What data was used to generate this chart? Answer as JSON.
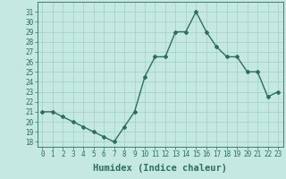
{
  "x": [
    0,
    1,
    2,
    3,
    4,
    5,
    6,
    7,
    8,
    9,
    10,
    11,
    12,
    13,
    14,
    15,
    16,
    17,
    18,
    19,
    20,
    21,
    22,
    23
  ],
  "y": [
    21.0,
    21.0,
    20.5,
    20.0,
    19.5,
    19.0,
    18.5,
    18.0,
    19.5,
    21.0,
    24.5,
    26.5,
    26.5,
    29.0,
    29.0,
    31.0,
    29.0,
    27.5,
    26.5,
    26.5,
    25.0,
    25.0,
    22.5,
    23.0
  ],
  "line_color": "#2d6e63",
  "marker": "D",
  "marker_size": 2.0,
  "bg_color": "#c5e8e0",
  "grid_color": "#a0cfc5",
  "xlabel": "Humidex (Indice chaleur)",
  "xlim": [
    -0.5,
    23.5
  ],
  "ylim": [
    17.5,
    32.0
  ],
  "yticks": [
    18,
    19,
    20,
    21,
    22,
    23,
    24,
    25,
    26,
    27,
    28,
    29,
    30,
    31
  ],
  "xticks": [
    0,
    1,
    2,
    3,
    4,
    5,
    6,
    7,
    8,
    9,
    10,
    11,
    12,
    13,
    14,
    15,
    16,
    17,
    18,
    19,
    20,
    21,
    22,
    23
  ],
  "xlabel_fontsize": 7.5,
  "tick_fontsize": 5.5,
  "line_width": 1.0
}
